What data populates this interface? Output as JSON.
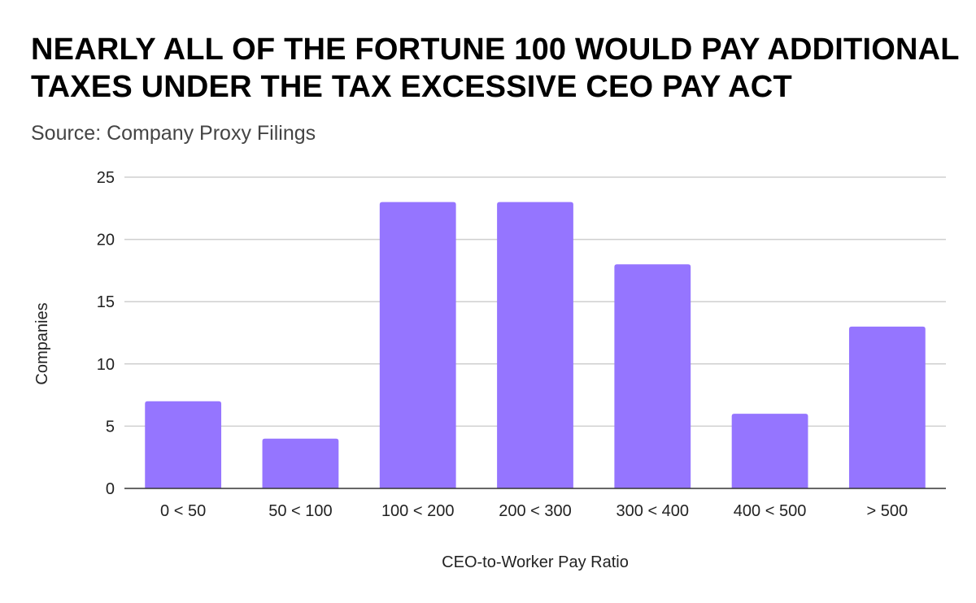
{
  "chart_data": {
    "type": "bar",
    "title": "NEARLY ALL OF THE FORTUNE 100 WOULD PAY ADDITIONAL TAXES UNDER THE TAX EXCESSIVE CEO PAY ACT",
    "subtitle": "Source: Company Proxy Filings",
    "xlabel": "CEO-to-Worker Pay Ratio",
    "ylabel": "Companies",
    "categories": [
      "0 < 50",
      "50 < 100",
      "100 < 200",
      "200 < 300",
      "300 < 400",
      "400 < 500",
      "> 500"
    ],
    "values": [
      7,
      4,
      23,
      23,
      18,
      6,
      13
    ],
    "ylim": [
      0,
      25
    ],
    "yticks": [
      "0",
      "5",
      "10",
      "15",
      "20",
      "25"
    ],
    "grid": true,
    "legend": "none",
    "bar_color": "#9575ff"
  }
}
